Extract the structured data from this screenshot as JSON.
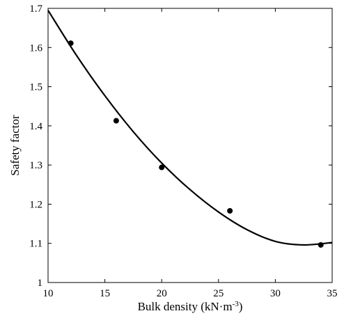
{
  "chart_data": {
    "type": "scatter",
    "xlabel_main": "Bulk density (kN·m",
    "xlabel_sup": "-3",
    "xlabel_end": ")",
    "ylabel": "Safety factor",
    "xlim": [
      10,
      35
    ],
    "ylim": [
      1.0,
      1.7
    ],
    "x_ticks": [
      10,
      15,
      20,
      25,
      30,
      35
    ],
    "y_ticks": [
      1.0,
      1.1,
      1.2,
      1.3,
      1.4,
      1.5,
      1.6,
      1.7
    ],
    "x_tick_labels": [
      "10",
      "15",
      "20",
      "25",
      "30",
      "35"
    ],
    "y_tick_labels": [
      "1",
      "1.1",
      "1.2",
      "1.3",
      "1.4",
      "1.5",
      "1.6",
      "1.7"
    ],
    "grid": false,
    "points": [
      {
        "x": 12,
        "y": 1.611
      },
      {
        "x": 16,
        "y": 1.413
      },
      {
        "x": 20,
        "y": 1.294
      },
      {
        "x": 26,
        "y": 1.183
      },
      {
        "x": 34,
        "y": 1.096
      }
    ],
    "fit_curve": {
      "x": [
        10,
        12.5,
        15,
        17.5,
        20,
        22.5,
        25,
        27.5,
        30,
        32.5,
        35
      ],
      "y": [
        1.695,
        1.58,
        1.477,
        1.385,
        1.305,
        1.237,
        1.18,
        1.135,
        1.105,
        1.096,
        1.102
      ]
    }
  }
}
